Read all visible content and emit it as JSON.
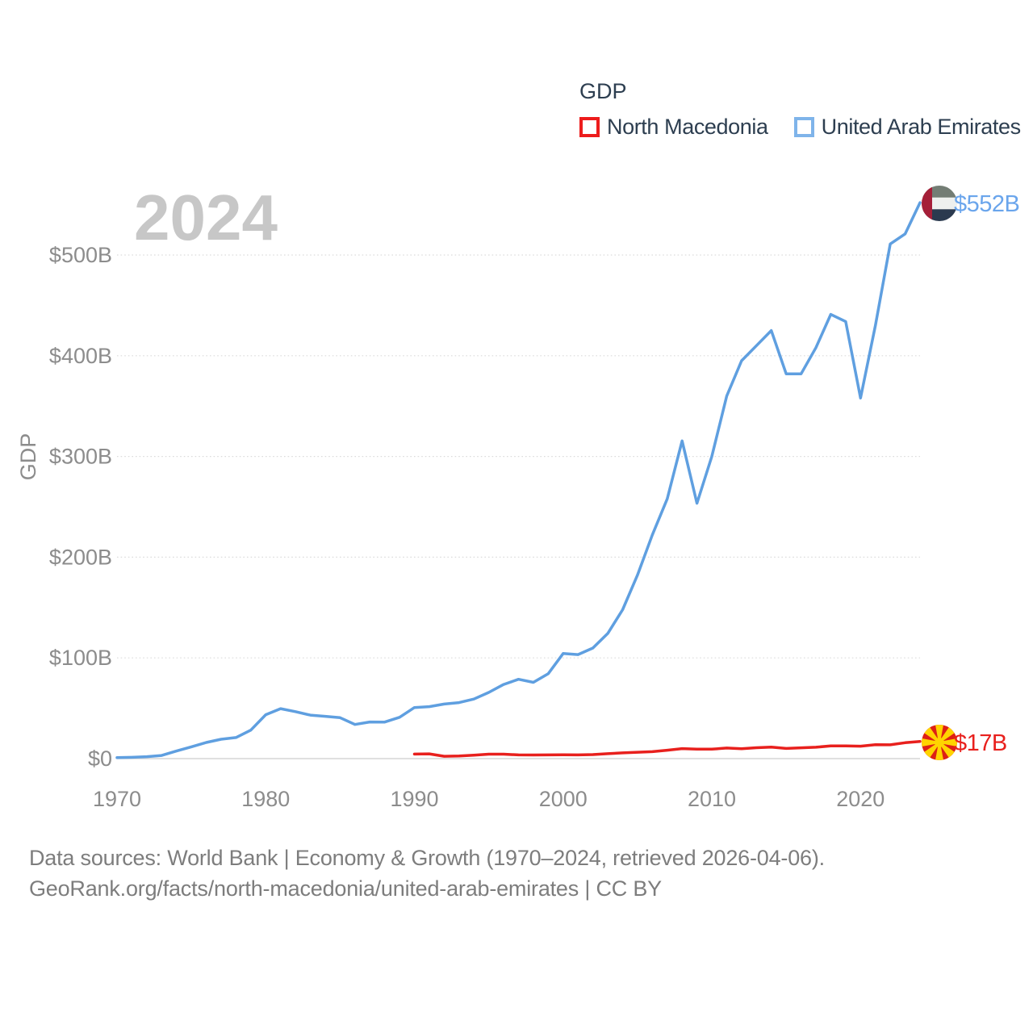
{
  "legend": {
    "title": "GDP",
    "items": [
      {
        "label": "North Macedonia",
        "color": "#ed1c1c"
      },
      {
        "label": "United Arab Emirates",
        "color": "#7fb4ea"
      }
    ]
  },
  "footer": {
    "line1": "Data sources: World Bank | Economy & Growth (1970–2024, retrieved 2026-04-06).",
    "line2": "GeoRank.org/facts/north-macedonia/united-arab-emirates | CC BY"
  },
  "colors": {
    "axis_text": "#8c8c8c",
    "gridline": "#dcdcdc",
    "zero_line": "#d6d6d6",
    "legend_text": "#2d3e50",
    "watermark": "#c7c7c7",
    "footer_text": "#7d7d7d"
  },
  "chart_data": {
    "type": "line",
    "title": "GDP",
    "xlabel": "",
    "ylabel": "GDP",
    "watermark": "2024",
    "grid": true,
    "legend_position": "top-right",
    "xlim": [
      1970,
      2024
    ],
    "ylim": [
      0,
      560
    ],
    "x_ticks": [
      {
        "year": 1970,
        "label": "1970"
      },
      {
        "year": 1980,
        "label": "1980"
      },
      {
        "year": 1990,
        "label": "1990"
      },
      {
        "year": 2000,
        "label": "2000"
      },
      {
        "year": 2010,
        "label": "2010"
      },
      {
        "year": 2020,
        "label": "2020"
      }
    ],
    "y_ticks": [
      {
        "value": 0,
        "label": "$0"
      },
      {
        "value": 100,
        "label": "$100B"
      },
      {
        "value": 200,
        "label": "$200B"
      },
      {
        "value": 300,
        "label": "$300B"
      },
      {
        "value": 400,
        "label": "$400B"
      },
      {
        "value": 500,
        "label": "$500B"
      }
    ],
    "units": "billion USD",
    "series": [
      {
        "name": "North Macedonia",
        "color": "#e8201d",
        "label_color": "#e8201d",
        "end_label": "$17B",
        "flag_icon": "north-macedonia-flag-icon",
        "start_year": 1990,
        "values": [
          4.5,
          4.7,
          2.3,
          2.6,
          3.4,
          4.4,
          4.4,
          3.7,
          3.6,
          3.7,
          3.8,
          3.7,
          4.0,
          4.9,
          5.7,
          6.3,
          6.9,
          8.3,
          9.9,
          9.4,
          9.4,
          10.5,
          9.8,
          10.8,
          11.4,
          10.1,
          10.7,
          11.3,
          12.7,
          12.6,
          12.3,
          13.8,
          13.7,
          15.8,
          17.0
        ]
      },
      {
        "name": "United Arab Emirates",
        "color": "#5f9fe0",
        "label_color": "#6aa5ec",
        "end_label": "$552B",
        "flag_icon": "uae-flag-icon",
        "start_year": 1970,
        "values": [
          1.0,
          1.3,
          1.9,
          3.1,
          7.5,
          11.7,
          16.0,
          19.2,
          20.9,
          28.3,
          43.6,
          49.6,
          46.6,
          43.2,
          42.0,
          40.6,
          33.9,
          36.4,
          36.3,
          41.0,
          50.7,
          51.6,
          54.2,
          55.6,
          59.1,
          65.7,
          73.6,
          78.8,
          75.7,
          84.4,
          104.3,
          103.3,
          109.8,
          124.3,
          147.8,
          182.2,
          222.1,
          257.9,
          315.5,
          253.5,
          300.0,
          360.0,
          395.0,
          410.0,
          425.0,
          382.0,
          382.0,
          408.0,
          441.0,
          434.0,
          358.0,
          430.0,
          511.0,
          521.0,
          552.0
        ]
      }
    ]
  }
}
